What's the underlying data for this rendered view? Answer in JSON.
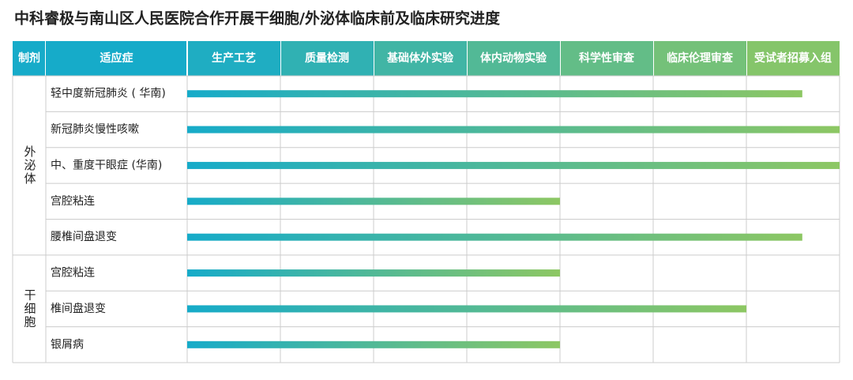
{
  "chart_data": {
    "type": "progress",
    "title": "中科睿极与南山区人民医院合作开展干细胞/外泌体临床前及临床研究进度",
    "header": {
      "group_col": "制剂",
      "indication_col": "适应症"
    },
    "categories": [
      "生产工艺",
      "质量检测",
      "基础体外实验",
      "体内动物实验",
      "科学性审查",
      "临床伦理审查",
      "受试者招募入组"
    ],
    "xlim": [
      0,
      7
    ],
    "color_start": "#16abc9",
    "color_end": "#8dc763",
    "groups": [
      {
        "name": "外泌体",
        "indications": [
          "轻中度新冠肺炎 ( 华南)",
          "新冠肺炎慢性咳嗽",
          "中、重度干眼症 (华南)",
          "宫腔粘连",
          "腰椎间盘退变"
        ],
        "values": [
          6.6,
          7,
          7,
          4,
          6.6
        ]
      },
      {
        "name": "干细胞",
        "indications": [
          "宫腔粘连",
          "椎间盘退变",
          "银屑病"
        ],
        "values": [
          4,
          6,
          4
        ]
      }
    ]
  }
}
